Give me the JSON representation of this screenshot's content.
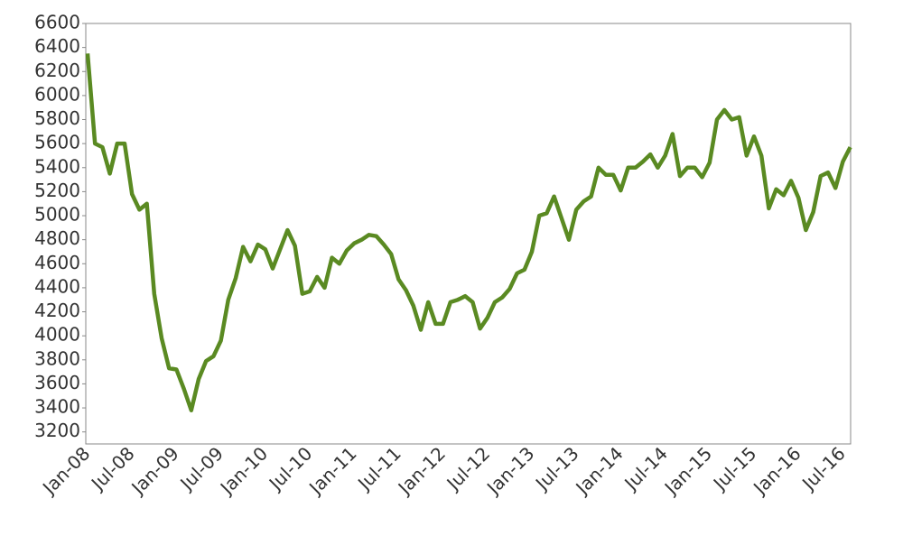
{
  "chart_data": {
    "type": "line",
    "categories": [
      "Jan-08",
      null,
      null,
      null,
      null,
      null,
      "Jul-08",
      null,
      null,
      null,
      null,
      null,
      "Jan-09",
      null,
      null,
      null,
      null,
      null,
      "Jul-09",
      null,
      null,
      null,
      null,
      null,
      "Jan-10",
      null,
      null,
      null,
      null,
      null,
      "Jul-10",
      null,
      null,
      null,
      null,
      null,
      "Jan-11",
      null,
      null,
      null,
      null,
      null,
      "Jul-11",
      null,
      null,
      null,
      null,
      null,
      "Jan-12",
      null,
      null,
      null,
      null,
      null,
      "Jul-12",
      null,
      null,
      null,
      null,
      null,
      "Jan-13",
      null,
      null,
      null,
      null,
      null,
      "Jul-13",
      null,
      null,
      null,
      null,
      null,
      "Jan-14",
      null,
      null,
      null,
      null,
      null,
      "Jul-14",
      null,
      null,
      null,
      null,
      null,
      "Jan-15",
      null,
      null,
      null,
      null,
      null,
      "Jul-15",
      null,
      null,
      null,
      null,
      null,
      "Jan-16",
      null,
      null,
      null,
      null,
      null,
      "Jul-16",
      null
    ],
    "values": [
      6350,
      5600,
      5570,
      5350,
      5600,
      5600,
      5180,
      5050,
      5100,
      4350,
      3980,
      3730,
      3720,
      3560,
      3380,
      3640,
      3790,
      3830,
      3960,
      4300,
      4480,
      4740,
      4620,
      4760,
      4720,
      4560,
      4720,
      4880,
      4750,
      4350,
      4370,
      4490,
      4400,
      4650,
      4600,
      4710,
      4770,
      4800,
      4840,
      4830,
      4760,
      4680,
      4470,
      4380,
      4250,
      4050,
      4280,
      4100,
      4100,
      4280,
      4300,
      4330,
      4280,
      4060,
      4150,
      4280,
      4320,
      4390,
      4520,
      4550,
      4700,
      5000,
      5020,
      5160,
      4980,
      4800,
      5050,
      5120,
      5160,
      5400,
      5340,
      5340,
      5210,
      5400,
      5400,
      5450,
      5510,
      5400,
      5500,
      5680,
      5330,
      5400,
      5400,
      5320,
      5440,
      5800,
      5880,
      5800,
      5820,
      5500,
      5660,
      5500,
      5060,
      5220,
      5170,
      5290,
      5150,
      4880,
      5030,
      5330,
      5360,
      5230,
      5450,
      5570
    ],
    "color": "#5a8a22",
    "ylim": [
      3100,
      6600
    ],
    "yticks": [
      3200,
      3400,
      3600,
      3800,
      4000,
      4200,
      4400,
      4600,
      4800,
      5000,
      5200,
      5400,
      5600,
      5800,
      6000,
      6200,
      6400,
      6600
    ]
  }
}
